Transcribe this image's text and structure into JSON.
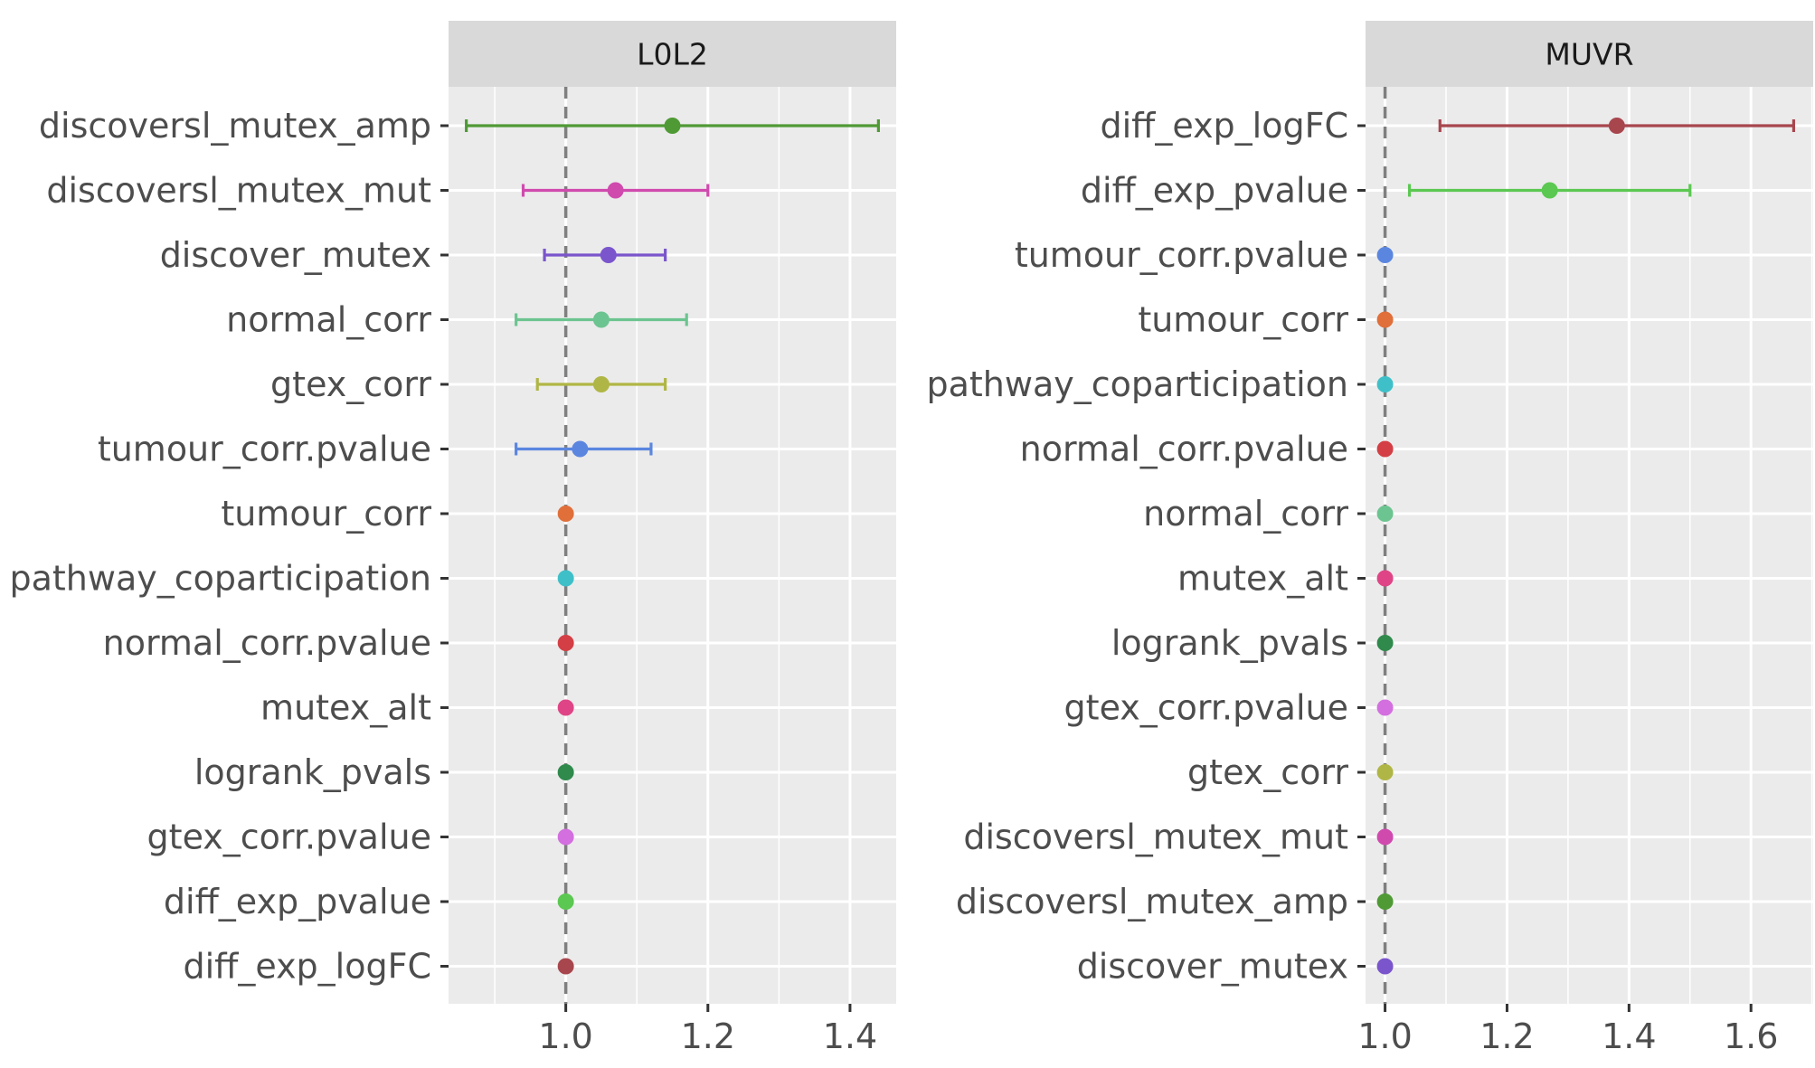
{
  "chart_data": {
    "type": "scatter",
    "layout": "two-panel faceted forest plot (point with horizontal error bars)",
    "reference_line": {
      "x": 1.0,
      "style": "dashed",
      "color": "#7f7f7f"
    },
    "grid": true,
    "legend": "none",
    "panels": [
      {
        "title": "L0L2",
        "xlim": [
          0.835,
          1.465
        ],
        "xticks": [
          1.0,
          1.2,
          1.4
        ],
        "xtick_labels": [
          "1.0",
          "1.2",
          "1.4"
        ],
        "rows": [
          {
            "label": "discoversl_mutex_amp",
            "value": 1.15,
            "lower": 0.86,
            "upper": 1.44,
            "color": "#4f9a35"
          },
          {
            "label": "discoversl_mutex_mut",
            "value": 1.07,
            "lower": 0.94,
            "upper": 1.2,
            "color": "#d04aae"
          },
          {
            "label": "discover_mutex",
            "value": 1.06,
            "lower": 0.97,
            "upper": 1.14,
            "color": "#7a55cc"
          },
          {
            "label": "normal_corr",
            "value": 1.05,
            "lower": 0.93,
            "upper": 1.17,
            "color": "#6cc490"
          },
          {
            "label": "gtex_corr",
            "value": 1.05,
            "lower": 0.96,
            "upper": 1.14,
            "color": "#b0b645"
          },
          {
            "label": "tumour_corr.pvalue",
            "value": 1.02,
            "lower": 0.93,
            "upper": 1.12,
            "color": "#5b86e0"
          },
          {
            "label": "tumour_corr",
            "value": 1.0,
            "color": "#e06f3a"
          },
          {
            "label": "pathway_coparticipation",
            "value": 1.0,
            "color": "#3fc0c8"
          },
          {
            "label": "normal_corr.pvalue",
            "value": 1.0,
            "color": "#d33f45"
          },
          {
            "label": "mutex_alt",
            "value": 1.0,
            "color": "#df4586"
          },
          {
            "label": "logrank_pvals",
            "value": 1.0,
            "color": "#2f8a4c"
          },
          {
            "label": "gtex_corr.pvalue",
            "value": 1.0,
            "color": "#d36fdf"
          },
          {
            "label": "diff_exp_pvalue",
            "value": 1.0,
            "color": "#5bc851"
          },
          {
            "label": "diff_exp_logFC",
            "value": 1.0,
            "color": "#a8464e"
          }
        ]
      },
      {
        "title": "MUVR",
        "xlim": [
          0.968,
          1.702
        ],
        "xticks": [
          1.0,
          1.2,
          1.4,
          1.6
        ],
        "xtick_labels": [
          "1.0",
          "1.2",
          "1.4",
          "1.6"
        ],
        "rows": [
          {
            "label": "diff_exp_logFC",
            "value": 1.38,
            "lower": 1.09,
            "upper": 1.67,
            "color": "#a8464e"
          },
          {
            "label": "diff_exp_pvalue",
            "value": 1.27,
            "lower": 1.04,
            "upper": 1.5,
            "color": "#5bc851"
          },
          {
            "label": "tumour_corr.pvalue",
            "value": 1.0,
            "color": "#5b86e0"
          },
          {
            "label": "tumour_corr",
            "value": 1.0,
            "color": "#e06f3a"
          },
          {
            "label": "pathway_coparticipation",
            "value": 1.0,
            "color": "#3fc0c8"
          },
          {
            "label": "normal_corr.pvalue",
            "value": 1.0,
            "color": "#d33f45"
          },
          {
            "label": "normal_corr",
            "value": 1.0,
            "color": "#6cc490"
          },
          {
            "label": "mutex_alt",
            "value": 1.0,
            "color": "#df4586"
          },
          {
            "label": "logrank_pvals",
            "value": 1.0,
            "color": "#2f8a4c"
          },
          {
            "label": "gtex_corr.pvalue",
            "value": 1.0,
            "color": "#d36fdf"
          },
          {
            "label": "gtex_corr",
            "value": 1.0,
            "color": "#b0b645"
          },
          {
            "label": "discoversl_mutex_mut",
            "value": 1.0,
            "color": "#d04aae"
          },
          {
            "label": "discoversl_mutex_amp",
            "value": 1.0,
            "color": "#4f9a35"
          },
          {
            "label": "discover_mutex",
            "value": 1.0,
            "color": "#7a55cc"
          }
        ]
      }
    ]
  }
}
